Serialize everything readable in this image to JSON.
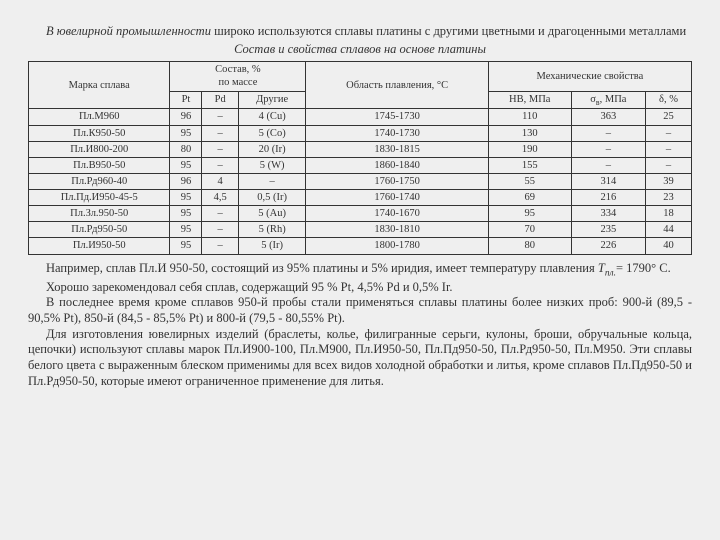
{
  "intro": {
    "line1_em": "В ювелирной промышленности",
    "line1_rest": " широко используются сплавы платины с другими цветными и драгоценными металлами",
    "caption": "Состав и свойства сплавов на основе платины"
  },
  "table": {
    "h_brand": "Марка сплава",
    "h_comp": "Состав, %\nпо массе",
    "h_comp_pt": "Pt",
    "h_comp_pd": "Pd",
    "h_comp_other": "Другие",
    "h_melt": "Область плавления, °С",
    "h_mech": "Механические свойства",
    "h_hb": "HB, МПа",
    "h_sigma": "σв, МПа",
    "h_delta": "δ, %",
    "rows": [
      {
        "brand": "Пл.М960",
        "pt": "96",
        "pd": "–",
        "other": "4 (Cu)",
        "melt": "1745-1730",
        "hb": "110",
        "sigma": "363",
        "delta": "25"
      },
      {
        "brand": "Пл.К950-50",
        "pt": "95",
        "pd": "–",
        "other": "5 (Co)",
        "melt": "1740-1730",
        "hb": "130",
        "sigma": "–",
        "delta": "–"
      },
      {
        "brand": "Пл.И800-200",
        "pt": "80",
        "pd": "–",
        "other": "20 (Ir)",
        "melt": "1830-1815",
        "hb": "190",
        "sigma": "–",
        "delta": "–"
      },
      {
        "brand": "Пл.В950-50",
        "pt": "95",
        "pd": "–",
        "other": "5 (W)",
        "melt": "1860-1840",
        "hb": "155",
        "sigma": "–",
        "delta": "–"
      },
      {
        "brand": "Пл.Рд960-40",
        "pt": "96",
        "pd": "4",
        "other": "–",
        "melt": "1760-1750",
        "hb": "55",
        "sigma": "314",
        "delta": "39"
      },
      {
        "brand": "Пл.Пд.И950-45-5",
        "pt": "95",
        "pd": "4,5",
        "other": "0,5 (Ir)",
        "melt": "1760-1740",
        "hb": "69",
        "sigma": "216",
        "delta": "23"
      },
      {
        "brand": "Пл.Зл.950-50",
        "pt": "95",
        "pd": "–",
        "other": "5 (Au)",
        "melt": "1740-1670",
        "hb": "95",
        "sigma": "334",
        "delta": "18"
      },
      {
        "brand": "Пл.Рд950-50",
        "pt": "95",
        "pd": "–",
        "other": "5 (Rh)",
        "melt": "1830-1810",
        "hb": "70",
        "sigma": "235",
        "delta": "44"
      },
      {
        "brand": "Пл.И950-50",
        "pt": "95",
        "pd": "–",
        "other": "5 (Ir)",
        "melt": "1800-1780",
        "hb": "80",
        "sigma": "226",
        "delta": "40"
      }
    ]
  },
  "notes": {
    "p1a": "Например, сплав Пл.И 950-50, состоящий из 95% платины и 5% иридия, имеет температуру плавления ",
    "p1b": "Т",
    "p1c": "пл.",
    "p1d": "= 1790° С.",
    "p2": "Хорошо зарекомендовал себя сплав, содержащий 95 % Pt, 4,5% Pd и 0,5% Ir.",
    "p3": "В последнее время кроме сплавов 950-й пробы стали применяться сплавы платины более низких проб: 900-й (89,5 - 90,5% Pt), 850-й (84,5 - 85,5% Pt) и 800-й (79,5 - 80,55% Pt).",
    "p4": "Для изготовления ювелирных изделий (браслеты, колье, филигранные серьги, кулоны, броши, обручальные кольца, цепочки) используют сплавы марок Пл.И900-100, Пл.М900, Пл.И950-50, Пл.Пд950-50, Пл.Рд950-50, Пл.М950.  Эти сплавы белого цвета с выраженным блеском применимы для всех видов холодной обработки и литья, кроме сплавов Пл.Пд950-50 и Пл.Рд950-50, которые имеют ограниченное применение для литья."
  }
}
